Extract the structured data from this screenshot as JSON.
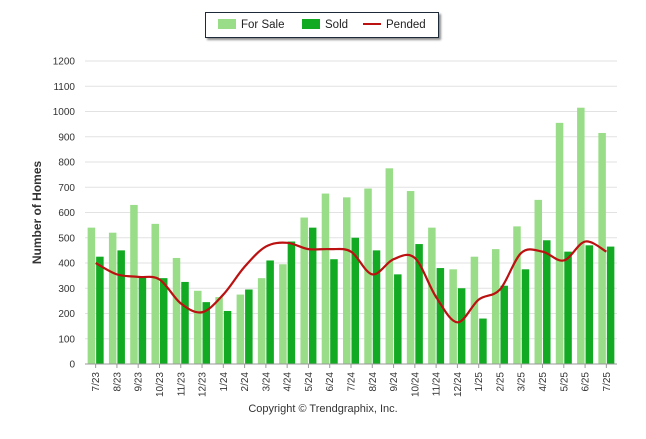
{
  "chart_data": {
    "type": "bar",
    "ylabel": "Number of Homes",
    "xlabel": "",
    "ylim": [
      0,
      1200
    ],
    "yticks": [
      0,
      100,
      200,
      300,
      400,
      500,
      600,
      700,
      800,
      900,
      1000,
      1100,
      1200
    ],
    "categories": [
      "7/23",
      "8/23",
      "9/23",
      "10/23",
      "11/23",
      "12/23",
      "1/24",
      "2/24",
      "3/24",
      "4/24",
      "5/24",
      "6/24",
      "7/24",
      "8/24",
      "9/24",
      "10/24",
      "11/24",
      "12/24",
      "1/25",
      "2/25",
      "3/25",
      "4/25",
      "5/25",
      "6/25",
      "7/25"
    ],
    "series": [
      {
        "name": "For Sale",
        "type": "bar",
        "color": "#99dd88",
        "values": [
          540,
          520,
          630,
          555,
          420,
          290,
          265,
          275,
          340,
          395,
          580,
          675,
          660,
          695,
          775,
          685,
          540,
          375,
          425,
          455,
          545,
          650,
          955,
          1015,
          915
        ]
      },
      {
        "name": "Sold",
        "type": "bar",
        "color": "#11aa22",
        "values": [
          425,
          450,
          345,
          340,
          325,
          245,
          210,
          295,
          410,
          485,
          540,
          415,
          500,
          450,
          355,
          475,
          380,
          300,
          180,
          310,
          375,
          490,
          445,
          470,
          465
        ]
      },
      {
        "name": "Pended",
        "type": "line",
        "color": "#bb1111",
        "values": [
          400,
          355,
          345,
          335,
          240,
          205,
          275,
          385,
          465,
          480,
          455,
          455,
          445,
          355,
          415,
          420,
          265,
          165,
          255,
          295,
          440,
          445,
          410,
          485,
          445
        ]
      }
    ],
    "grid": true,
    "legend_position": "top-center"
  },
  "copyright": "Copyright © Trendgraphix, Inc."
}
